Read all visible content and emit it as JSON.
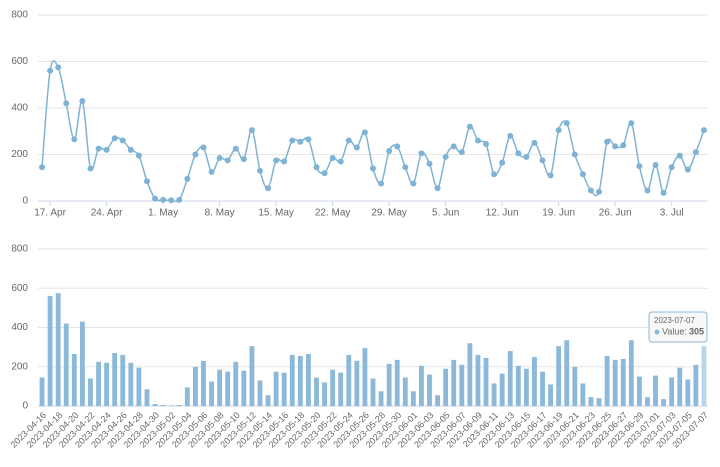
{
  "chart_data": [
    {
      "type": "line",
      "color": "#7fb3d5",
      "ylim": [
        0,
        800
      ],
      "yticks": [
        0,
        200,
        400,
        600,
        800
      ],
      "grid": true,
      "categories": [
        null,
        "17. Apr",
        null,
        null,
        null,
        null,
        null,
        null,
        "24. Apr",
        null,
        null,
        null,
        null,
        null,
        null,
        "1. May",
        null,
        null,
        null,
        null,
        null,
        null,
        "8. May",
        null,
        null,
        null,
        null,
        null,
        null,
        "15. May",
        null,
        null,
        null,
        null,
        null,
        null,
        "22. May",
        null,
        null,
        null,
        null,
        null,
        null,
        "29. May",
        null,
        null,
        null,
        null,
        null,
        null,
        "5. Jun",
        null,
        null,
        null,
        null,
        null,
        null,
        "12. Jun",
        null,
        null,
        null,
        null,
        null,
        null,
        "19. Jun",
        null,
        null,
        null,
        null,
        null,
        null,
        "26. Jun",
        null,
        null,
        null,
        null,
        null,
        null,
        "3. Jul",
        null,
        null,
        null,
        null
      ],
      "values": [
        145,
        560,
        575,
        420,
        265,
        430,
        140,
        225,
        220,
        270,
        260,
        220,
        195,
        85,
        10,
        5,
        3,
        5,
        95,
        200,
        230,
        125,
        185,
        175,
        225,
        180,
        305,
        130,
        55,
        175,
        170,
        260,
        255,
        265,
        145,
        120,
        185,
        170,
        260,
        230,
        295,
        140,
        75,
        215,
        235,
        145,
        75,
        205,
        160,
        55,
        190,
        235,
        210,
        320,
        260,
        245,
        115,
        165,
        280,
        205,
        190,
        250,
        175,
        110,
        305,
        335,
        200,
        115,
        45,
        40,
        255,
        235,
        240,
        335,
        150,
        45,
        155,
        35,
        145,
        195,
        135,
        210,
        305
      ]
    },
    {
      "type": "bar",
      "color": "#8cb9d9",
      "ylim": [
        0,
        800
      ],
      "yticks": [
        0,
        200,
        400,
        600,
        800
      ],
      "grid": true,
      "categories": [
        "2023-04-16",
        null,
        "2023-04-18",
        null,
        "2023-04-20",
        null,
        "2023-04-22",
        null,
        "2023-04-24",
        null,
        "2023-04-26",
        null,
        "2023-04-28",
        null,
        "2023-04-30",
        null,
        "2023-05-02",
        null,
        "2023-05-04",
        null,
        "2023-05-06",
        null,
        "2023-05-08",
        null,
        "2023-05-10",
        null,
        "2023-05-12",
        null,
        "2023-05-14",
        null,
        "2023-05-16",
        null,
        "2023-05-18",
        null,
        "2023-05-20",
        null,
        "2023-05-22",
        null,
        "2023-05-24",
        null,
        "2023-05-26",
        null,
        "2023-05-28",
        null,
        "2023-05-30",
        null,
        "2023-06-01",
        null,
        "2023-06-03",
        null,
        "2023-06-05",
        null,
        "2023-06-07",
        null,
        "2023-06-09",
        null,
        "2023-06-11",
        null,
        "2023-06-13",
        null,
        "2023-06-15",
        null,
        "2023-06-17",
        null,
        "2023-06-19",
        null,
        "2023-06-21",
        null,
        "2023-06-23",
        null,
        "2023-06-25",
        null,
        "2023-06-27",
        null,
        "2023-06-29",
        null,
        "2023-07-01",
        null,
        "2023-07-03",
        null,
        "2023-07-05",
        null,
        "2023-07-07"
      ],
      "values": [
        145,
        560,
        575,
        420,
        265,
        430,
        140,
        225,
        220,
        270,
        260,
        220,
        195,
        85,
        10,
        5,
        3,
        5,
        95,
        200,
        230,
        125,
        185,
        175,
        225,
        180,
        305,
        130,
        55,
        175,
        170,
        260,
        255,
        265,
        145,
        120,
        185,
        170,
        260,
        230,
        295,
        140,
        75,
        215,
        235,
        145,
        75,
        205,
        160,
        55,
        190,
        235,
        210,
        320,
        260,
        245,
        115,
        165,
        280,
        205,
        190,
        250,
        175,
        110,
        305,
        335,
        200,
        115,
        45,
        40,
        255,
        235,
        240,
        335,
        150,
        45,
        155,
        35,
        145,
        195,
        135,
        210,
        305
      ],
      "tooltip": {
        "title": "2023-07-07",
        "label": "Value:",
        "value": 305
      }
    }
  ]
}
